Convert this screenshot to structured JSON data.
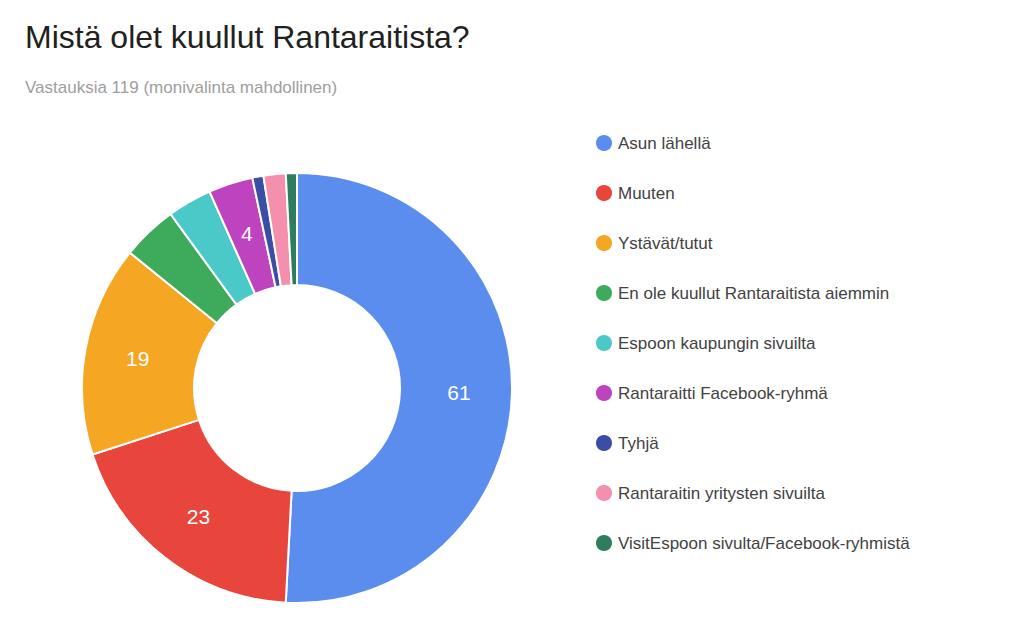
{
  "chart_data": {
    "type": "pie",
    "title": "Mistä olet kuullut Rantaraitista?",
    "subtitle": "Vastauksia 119 (monivalinta mahdollinen)",
    "categories": [
      "Asun lähellä",
      "Muuten",
      "Ystävät/tutut",
      "En ole kuullut Rantaraitista aiemmin",
      "Espoon kaupungin sivuilta",
      "Rantaraitti Facebook-ryhmä",
      "Tyhjä",
      "Rantaraitin yritysten sivuilta",
      "VisitEspoon sivulta/Facebook-ryhmistä"
    ],
    "values": [
      61,
      23,
      19,
      5,
      4,
      4,
      1,
      2,
      1
    ],
    "value_labels": [
      "61",
      "23",
      "19",
      null,
      null,
      "4",
      null,
      null,
      null
    ],
    "colors": [
      "#5B8DEF",
      "#E8453C",
      "#F5A623",
      "#3DAA5C",
      "#4BC8C8",
      "#BE44BF",
      "#3B4EA6",
      "#F48FAE",
      "#2E7D5E"
    ],
    "data_labels": true,
    "legend": "right"
  }
}
